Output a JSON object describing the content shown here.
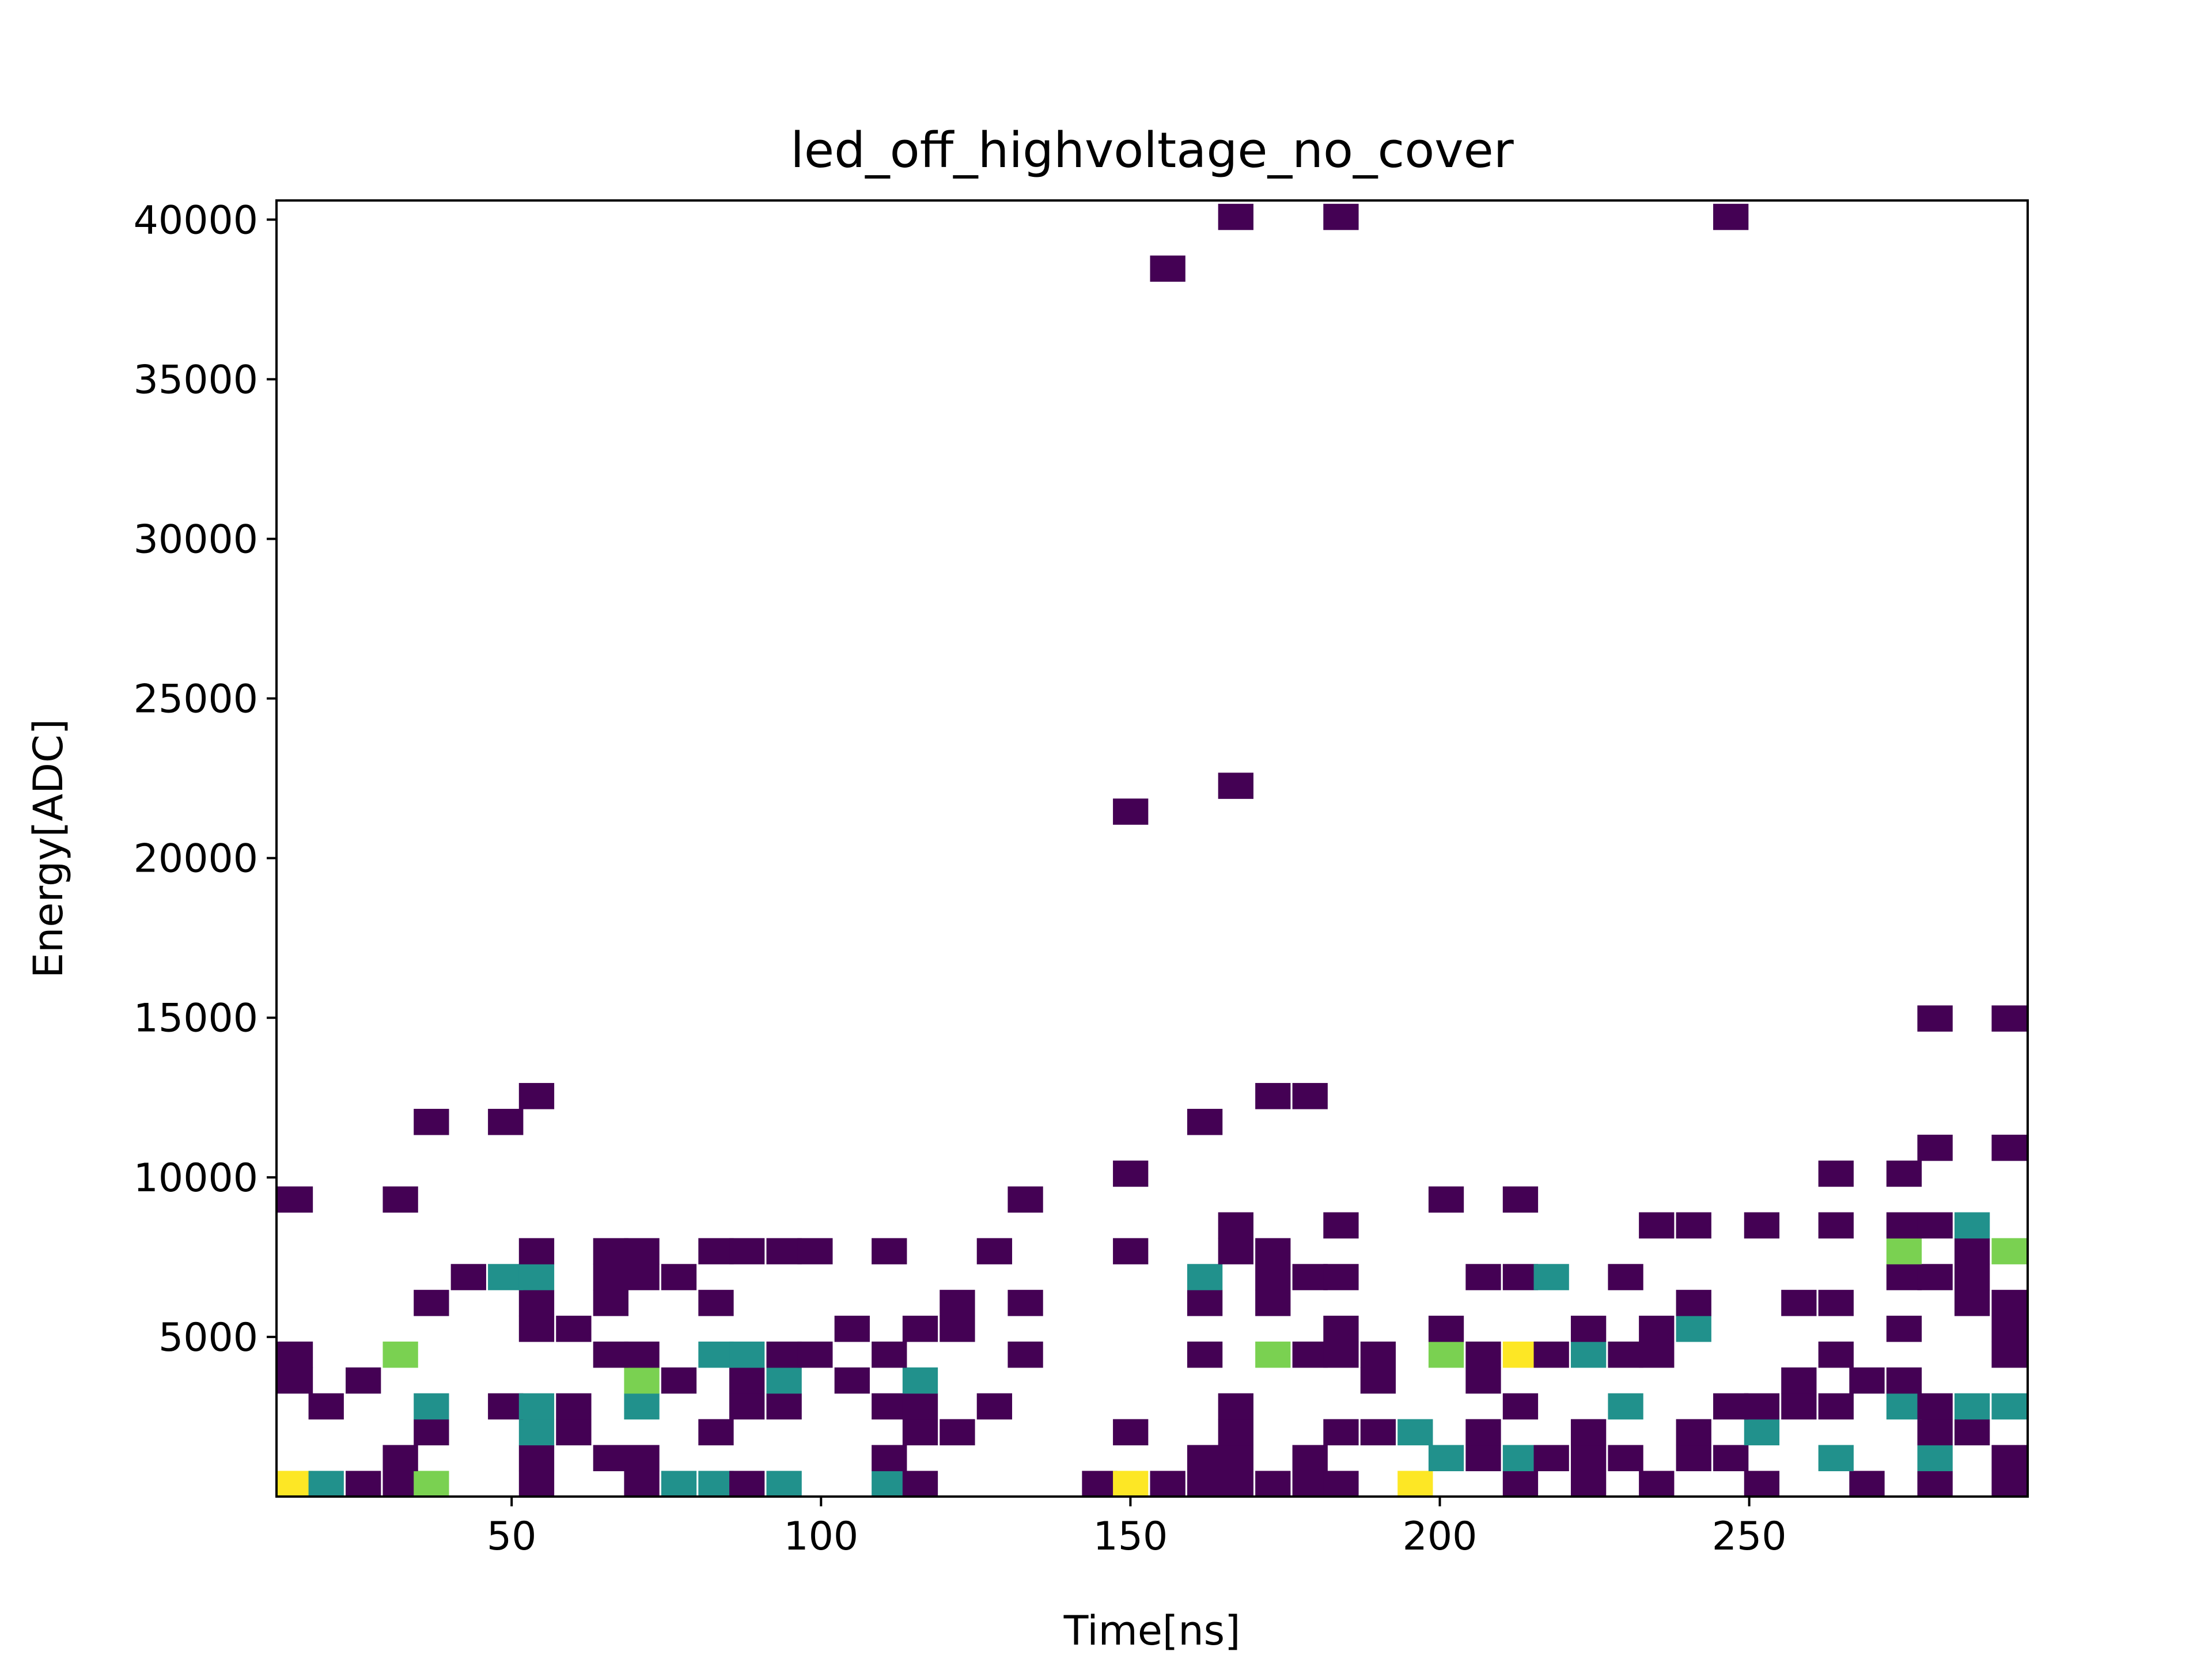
{
  "chart_data": {
    "type": "heatmap",
    "title": "led_off_highvoltage_no_cover",
    "xlabel": "Time[ns]",
    "ylabel": "Energy[ADC]",
    "xlim": [
      12,
      295
    ],
    "ylim": [
      0,
      40600
    ],
    "bin_width": 5.65,
    "bin_height": 810,
    "xticks": [
      50,
      100,
      150,
      200,
      250
    ],
    "yticks": [
      5000,
      10000,
      15000,
      20000,
      25000,
      30000,
      35000,
      40000
    ],
    "colorscale": {
      "min": 1,
      "max": 4,
      "colors": [
        "#440154",
        "#21918c",
        "#7ad151",
        "#fde725"
      ]
    },
    "colorbar": false,
    "grid": false,
    "bins": [
      {
        "x": 15,
        "y": 400,
        "count": 4
      },
      {
        "x": 20,
        "y": 400,
        "count": 2
      },
      {
        "x": 26,
        "y": 400,
        "count": 1
      },
      {
        "x": 32,
        "y": 400,
        "count": 1
      },
      {
        "x": 37,
        "y": 400,
        "count": 3
      },
      {
        "x": 54,
        "y": 400,
        "count": 1
      },
      {
        "x": 71,
        "y": 400,
        "count": 1
      },
      {
        "x": 77,
        "y": 400,
        "count": 2
      },
      {
        "x": 83,
        "y": 400,
        "count": 2
      },
      {
        "x": 88,
        "y": 400,
        "count": 1
      },
      {
        "x": 94,
        "y": 400,
        "count": 2
      },
      {
        "x": 111,
        "y": 400,
        "count": 2
      },
      {
        "x": 116,
        "y": 400,
        "count": 1
      },
      {
        "x": 145,
        "y": 400,
        "count": 1
      },
      {
        "x": 150,
        "y": 400,
        "count": 4
      },
      {
        "x": 156,
        "y": 400,
        "count": 1
      },
      {
        "x": 162,
        "y": 400,
        "count": 1
      },
      {
        "x": 167,
        "y": 400,
        "count": 1
      },
      {
        "x": 173,
        "y": 400,
        "count": 1
      },
      {
        "x": 179,
        "y": 400,
        "count": 1
      },
      {
        "x": 184,
        "y": 400,
        "count": 1
      },
      {
        "x": 196,
        "y": 400,
        "count": 4
      },
      {
        "x": 213,
        "y": 400,
        "count": 1
      },
      {
        "x": 224,
        "y": 400,
        "count": 1
      },
      {
        "x": 235,
        "y": 400,
        "count": 1
      },
      {
        "x": 252,
        "y": 400,
        "count": 1
      },
      {
        "x": 269,
        "y": 400,
        "count": 1
      },
      {
        "x": 280,
        "y": 400,
        "count": 1
      },
      {
        "x": 292,
        "y": 400,
        "count": 1
      },
      {
        "x": 32,
        "y": 1210,
        "count": 1
      },
      {
        "x": 54,
        "y": 1210,
        "count": 1
      },
      {
        "x": 66,
        "y": 1210,
        "count": 1
      },
      {
        "x": 71,
        "y": 1210,
        "count": 1
      },
      {
        "x": 111,
        "y": 1210,
        "count": 1
      },
      {
        "x": 162,
        "y": 1210,
        "count": 1
      },
      {
        "x": 167,
        "y": 1210,
        "count": 1
      },
      {
        "x": 179,
        "y": 1210,
        "count": 1
      },
      {
        "x": 201,
        "y": 1210,
        "count": 2
      },
      {
        "x": 207,
        "y": 1210,
        "count": 1
      },
      {
        "x": 213,
        "y": 1210,
        "count": 2
      },
      {
        "x": 218,
        "y": 1210,
        "count": 1
      },
      {
        "x": 224,
        "y": 1210,
        "count": 1
      },
      {
        "x": 230,
        "y": 1210,
        "count": 1
      },
      {
        "x": 241,
        "y": 1210,
        "count": 1
      },
      {
        "x": 247,
        "y": 1210,
        "count": 1
      },
      {
        "x": 264,
        "y": 1210,
        "count": 2
      },
      {
        "x": 280,
        "y": 1210,
        "count": 2
      },
      {
        "x": 292,
        "y": 1210,
        "count": 1
      },
      {
        "x": 37,
        "y": 2020,
        "count": 1
      },
      {
        "x": 54,
        "y": 2020,
        "count": 2
      },
      {
        "x": 60,
        "y": 2020,
        "count": 1
      },
      {
        "x": 83,
        "y": 2020,
        "count": 1
      },
      {
        "x": 116,
        "y": 2020,
        "count": 1
      },
      {
        "x": 122,
        "y": 2020,
        "count": 1
      },
      {
        "x": 150,
        "y": 2020,
        "count": 1
      },
      {
        "x": 167,
        "y": 2020,
        "count": 1
      },
      {
        "x": 184,
        "y": 2020,
        "count": 1
      },
      {
        "x": 190,
        "y": 2020,
        "count": 1
      },
      {
        "x": 196,
        "y": 2020,
        "count": 2
      },
      {
        "x": 207,
        "y": 2020,
        "count": 1
      },
      {
        "x": 224,
        "y": 2020,
        "count": 1
      },
      {
        "x": 241,
        "y": 2020,
        "count": 1
      },
      {
        "x": 252,
        "y": 2020,
        "count": 2
      },
      {
        "x": 280,
        "y": 2020,
        "count": 1
      },
      {
        "x": 286,
        "y": 2020,
        "count": 1
      },
      {
        "x": 20,
        "y": 2830,
        "count": 1
      },
      {
        "x": 37,
        "y": 2830,
        "count": 2
      },
      {
        "x": 49,
        "y": 2830,
        "count": 1
      },
      {
        "x": 54,
        "y": 2830,
        "count": 2
      },
      {
        "x": 60,
        "y": 2830,
        "count": 1
      },
      {
        "x": 71,
        "y": 2830,
        "count": 2
      },
      {
        "x": 88,
        "y": 2830,
        "count": 1
      },
      {
        "x": 94,
        "y": 2830,
        "count": 1
      },
      {
        "x": 111,
        "y": 2830,
        "count": 1
      },
      {
        "x": 116,
        "y": 2830,
        "count": 1
      },
      {
        "x": 128,
        "y": 2830,
        "count": 1
      },
      {
        "x": 167,
        "y": 2830,
        "count": 1
      },
      {
        "x": 213,
        "y": 2830,
        "count": 1
      },
      {
        "x": 230,
        "y": 2830,
        "count": 2
      },
      {
        "x": 247,
        "y": 2830,
        "count": 1
      },
      {
        "x": 252,
        "y": 2830,
        "count": 1
      },
      {
        "x": 258,
        "y": 2830,
        "count": 1
      },
      {
        "x": 264,
        "y": 2830,
        "count": 1
      },
      {
        "x": 275,
        "y": 2830,
        "count": 2
      },
      {
        "x": 280,
        "y": 2830,
        "count": 1
      },
      {
        "x": 286,
        "y": 2830,
        "count": 2
      },
      {
        "x": 292,
        "y": 2830,
        "count": 2
      },
      {
        "x": 15,
        "y": 3640,
        "count": 1
      },
      {
        "x": 26,
        "y": 3640,
        "count": 1
      },
      {
        "x": 71,
        "y": 3640,
        "count": 3
      },
      {
        "x": 77,
        "y": 3640,
        "count": 1
      },
      {
        "x": 88,
        "y": 3640,
        "count": 1
      },
      {
        "x": 94,
        "y": 3640,
        "count": 2
      },
      {
        "x": 105,
        "y": 3640,
        "count": 1
      },
      {
        "x": 116,
        "y": 3640,
        "count": 2
      },
      {
        "x": 190,
        "y": 3640,
        "count": 1
      },
      {
        "x": 207,
        "y": 3640,
        "count": 1
      },
      {
        "x": 258,
        "y": 3640,
        "count": 1
      },
      {
        "x": 269,
        "y": 3640,
        "count": 1
      },
      {
        "x": 275,
        "y": 3640,
        "count": 1
      },
      {
        "x": 15,
        "y": 4450,
        "count": 1
      },
      {
        "x": 32,
        "y": 4450,
        "count": 3
      },
      {
        "x": 66,
        "y": 4450,
        "count": 1
      },
      {
        "x": 71,
        "y": 4450,
        "count": 1
      },
      {
        "x": 83,
        "y": 4450,
        "count": 2
      },
      {
        "x": 88,
        "y": 4450,
        "count": 2
      },
      {
        "x": 94,
        "y": 4450,
        "count": 1
      },
      {
        "x": 99,
        "y": 4450,
        "count": 1
      },
      {
        "x": 111,
        "y": 4450,
        "count": 1
      },
      {
        "x": 133,
        "y": 4450,
        "count": 1
      },
      {
        "x": 162,
        "y": 4450,
        "count": 1
      },
      {
        "x": 173,
        "y": 4450,
        "count": 3
      },
      {
        "x": 179,
        "y": 4450,
        "count": 1
      },
      {
        "x": 184,
        "y": 4450,
        "count": 1
      },
      {
        "x": 190,
        "y": 4450,
        "count": 1
      },
      {
        "x": 201,
        "y": 4450,
        "count": 3
      },
      {
        "x": 207,
        "y": 4450,
        "count": 1
      },
      {
        "x": 213,
        "y": 4450,
        "count": 4
      },
      {
        "x": 218,
        "y": 4450,
        "count": 1
      },
      {
        "x": 224,
        "y": 4450,
        "count": 2
      },
      {
        "x": 230,
        "y": 4450,
        "count": 1
      },
      {
        "x": 235,
        "y": 4450,
        "count": 1
      },
      {
        "x": 264,
        "y": 4450,
        "count": 1
      },
      {
        "x": 292,
        "y": 4450,
        "count": 1
      },
      {
        "x": 54,
        "y": 5260,
        "count": 1
      },
      {
        "x": 60,
        "y": 5260,
        "count": 1
      },
      {
        "x": 105,
        "y": 5260,
        "count": 1
      },
      {
        "x": 116,
        "y": 5260,
        "count": 1
      },
      {
        "x": 122,
        "y": 5260,
        "count": 1
      },
      {
        "x": 184,
        "y": 5260,
        "count": 1
      },
      {
        "x": 201,
        "y": 5260,
        "count": 1
      },
      {
        "x": 224,
        "y": 5260,
        "count": 1
      },
      {
        "x": 235,
        "y": 5260,
        "count": 1
      },
      {
        "x": 241,
        "y": 5260,
        "count": 2
      },
      {
        "x": 275,
        "y": 5260,
        "count": 1
      },
      {
        "x": 292,
        "y": 5260,
        "count": 1
      },
      {
        "x": 37,
        "y": 6070,
        "count": 1
      },
      {
        "x": 54,
        "y": 6070,
        "count": 1
      },
      {
        "x": 66,
        "y": 6070,
        "count": 1
      },
      {
        "x": 83,
        "y": 6070,
        "count": 1
      },
      {
        "x": 122,
        "y": 6070,
        "count": 1
      },
      {
        "x": 133,
        "y": 6070,
        "count": 1
      },
      {
        "x": 162,
        "y": 6070,
        "count": 1
      },
      {
        "x": 173,
        "y": 6070,
        "count": 1
      },
      {
        "x": 241,
        "y": 6070,
        "count": 1
      },
      {
        "x": 258,
        "y": 6070,
        "count": 1
      },
      {
        "x": 264,
        "y": 6070,
        "count": 1
      },
      {
        "x": 286,
        "y": 6070,
        "count": 1
      },
      {
        "x": 292,
        "y": 6070,
        "count": 1
      },
      {
        "x": 43,
        "y": 6880,
        "count": 1
      },
      {
        "x": 49,
        "y": 6880,
        "count": 2
      },
      {
        "x": 54,
        "y": 6880,
        "count": 2
      },
      {
        "x": 66,
        "y": 6880,
        "count": 1
      },
      {
        "x": 71,
        "y": 6880,
        "count": 1
      },
      {
        "x": 77,
        "y": 6880,
        "count": 1
      },
      {
        "x": 162,
        "y": 6880,
        "count": 2
      },
      {
        "x": 173,
        "y": 6880,
        "count": 1
      },
      {
        "x": 179,
        "y": 6880,
        "count": 1
      },
      {
        "x": 184,
        "y": 6880,
        "count": 1
      },
      {
        "x": 207,
        "y": 6880,
        "count": 1
      },
      {
        "x": 213,
        "y": 6880,
        "count": 1
      },
      {
        "x": 218,
        "y": 6880,
        "count": 2
      },
      {
        "x": 230,
        "y": 6880,
        "count": 1
      },
      {
        "x": 275,
        "y": 6880,
        "count": 1
      },
      {
        "x": 280,
        "y": 6880,
        "count": 1
      },
      {
        "x": 286,
        "y": 6880,
        "count": 1
      },
      {
        "x": 54,
        "y": 7690,
        "count": 1
      },
      {
        "x": 66,
        "y": 7690,
        "count": 1
      },
      {
        "x": 71,
        "y": 7690,
        "count": 1
      },
      {
        "x": 83,
        "y": 7690,
        "count": 1
      },
      {
        "x": 88,
        "y": 7690,
        "count": 1
      },
      {
        "x": 94,
        "y": 7690,
        "count": 1
      },
      {
        "x": 99,
        "y": 7690,
        "count": 1
      },
      {
        "x": 111,
        "y": 7690,
        "count": 1
      },
      {
        "x": 128,
        "y": 7690,
        "count": 1
      },
      {
        "x": 150,
        "y": 7690,
        "count": 1
      },
      {
        "x": 167,
        "y": 7690,
        "count": 1
      },
      {
        "x": 173,
        "y": 7690,
        "count": 1
      },
      {
        "x": 275,
        "y": 7690,
        "count": 3
      },
      {
        "x": 286,
        "y": 7690,
        "count": 1
      },
      {
        "x": 292,
        "y": 7690,
        "count": 3
      },
      {
        "x": 167,
        "y": 8500,
        "count": 1
      },
      {
        "x": 184,
        "y": 8500,
        "count": 1
      },
      {
        "x": 235,
        "y": 8500,
        "count": 1
      },
      {
        "x": 241,
        "y": 8500,
        "count": 1
      },
      {
        "x": 252,
        "y": 8500,
        "count": 1
      },
      {
        "x": 264,
        "y": 8500,
        "count": 1
      },
      {
        "x": 275,
        "y": 8500,
        "count": 1
      },
      {
        "x": 280,
        "y": 8500,
        "count": 1
      },
      {
        "x": 286,
        "y": 8500,
        "count": 2
      },
      {
        "x": 15,
        "y": 9310,
        "count": 1
      },
      {
        "x": 32,
        "y": 9310,
        "count": 1
      },
      {
        "x": 133,
        "y": 9310,
        "count": 1
      },
      {
        "x": 201,
        "y": 9310,
        "count": 1
      },
      {
        "x": 213,
        "y": 9310,
        "count": 1
      },
      {
        "x": 150,
        "y": 10120,
        "count": 1
      },
      {
        "x": 264,
        "y": 10120,
        "count": 1
      },
      {
        "x": 275,
        "y": 10120,
        "count": 1
      },
      {
        "x": 280,
        "y": 10930,
        "count": 1
      },
      {
        "x": 292,
        "y": 10930,
        "count": 1
      },
      {
        "x": 37,
        "y": 11740,
        "count": 1
      },
      {
        "x": 49,
        "y": 11740,
        "count": 1
      },
      {
        "x": 162,
        "y": 11740,
        "count": 1
      },
      {
        "x": 54,
        "y": 12550,
        "count": 1
      },
      {
        "x": 173,
        "y": 12550,
        "count": 1
      },
      {
        "x": 179,
        "y": 12550,
        "count": 1
      },
      {
        "x": 280,
        "y": 14980,
        "count": 1
      },
      {
        "x": 292,
        "y": 14980,
        "count": 1
      },
      {
        "x": 150,
        "y": 21460,
        "count": 1
      },
      {
        "x": 167,
        "y": 22270,
        "count": 1
      },
      {
        "x": 156,
        "y": 38470,
        "count": 1
      },
      {
        "x": 167,
        "y": 40090,
        "count": 1
      },
      {
        "x": 184,
        "y": 40090,
        "count": 1
      },
      {
        "x": 247,
        "y": 40090,
        "count": 1
      }
    ]
  }
}
